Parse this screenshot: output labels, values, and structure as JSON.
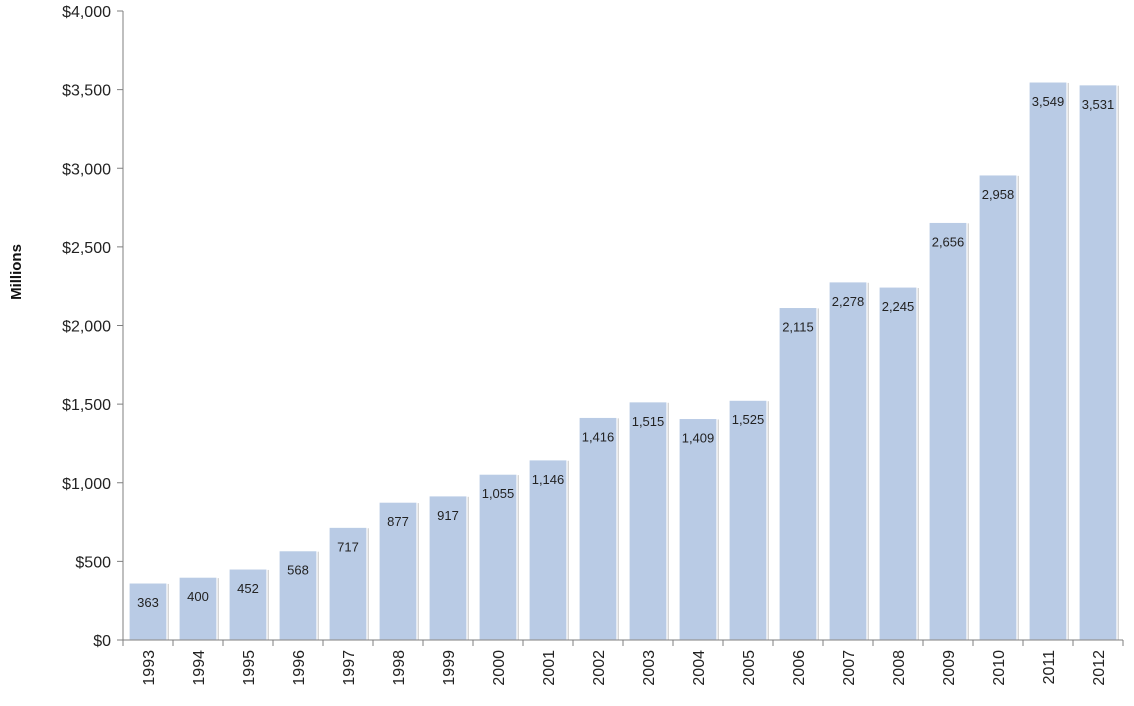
{
  "chart_data": {
    "type": "bar",
    "title": "",
    "xlabel": "",
    "ylabel": "Millions",
    "ylim": [
      0,
      4000
    ],
    "yticks": [
      0,
      500,
      1000,
      1500,
      2000,
      2500,
      3000,
      3500,
      4000
    ],
    "ytick_labels": [
      "$0",
      "$500",
      "$1,000",
      "$1,500",
      "$2,000",
      "$2,500",
      "$3,000",
      "$3,500",
      "$4,000"
    ],
    "categories": [
      "1993",
      "1994",
      "1995",
      "1996",
      "1997",
      "1998",
      "1999",
      "2000",
      "2001",
      "2002",
      "2003",
      "2004",
      "2005",
      "2006",
      "2007",
      "2008",
      "2009",
      "2010",
      "2011",
      "2012"
    ],
    "values": [
      363,
      400,
      452,
      568,
      717,
      877,
      917,
      1055,
      1146,
      1416,
      1515,
      1409,
      1525,
      2115,
      2278,
      2245,
      2656,
      2958,
      3549,
      3531
    ],
    "value_labels": [
      "363",
      "400",
      "452",
      "568",
      "717",
      "877",
      "917",
      "1,055",
      "1,146",
      "1,416",
      "1,515",
      "1,409",
      "1,525",
      "2,115",
      "2,278",
      "2,245",
      "2,656",
      "2,958",
      "3,549",
      "3,531"
    ],
    "bar_color": "#b9cbe5",
    "grid": false,
    "legend": "none"
  }
}
